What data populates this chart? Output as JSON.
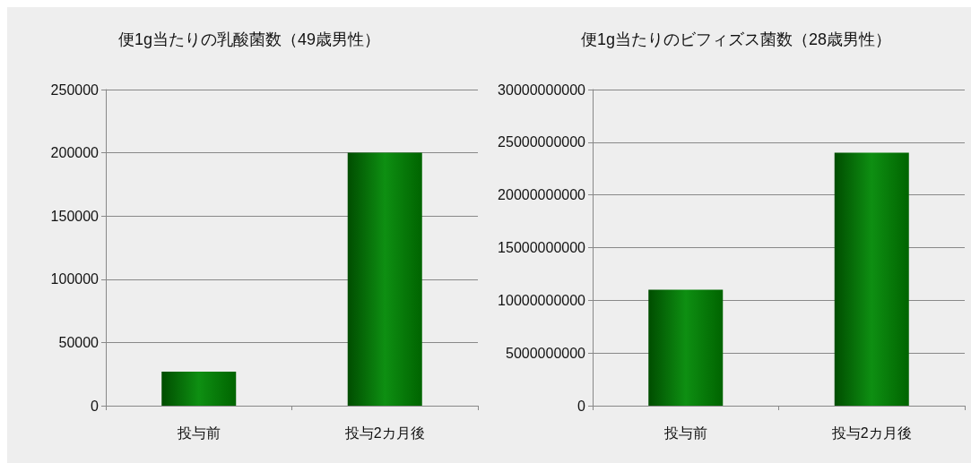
{
  "chart_data": [
    {
      "type": "bar",
      "title": "便1g当たりの乳酸菌数（49歳男性）",
      "categories": [
        "投与前",
        "投与2カ月後"
      ],
      "values": [
        27000,
        200000
      ],
      "color": "#0e8f12",
      "ylim": [
        0,
        250000
      ],
      "yticks": [
        0,
        50000,
        100000,
        150000,
        200000,
        250000
      ],
      "grid": "y"
    },
    {
      "type": "bar",
      "title": "便1g当たりのビフィズス菌数（28歳男性）",
      "categories": [
        "投与前",
        "投与2カ月後"
      ],
      "values": [
        11000000000,
        24000000000
      ],
      "color": "#0e8f12",
      "ylim": [
        0,
        30000000000
      ],
      "yticks": [
        0,
        5000000000,
        10000000000,
        15000000000,
        20000000000,
        25000000000,
        30000000000
      ],
      "grid": "y"
    }
  ]
}
